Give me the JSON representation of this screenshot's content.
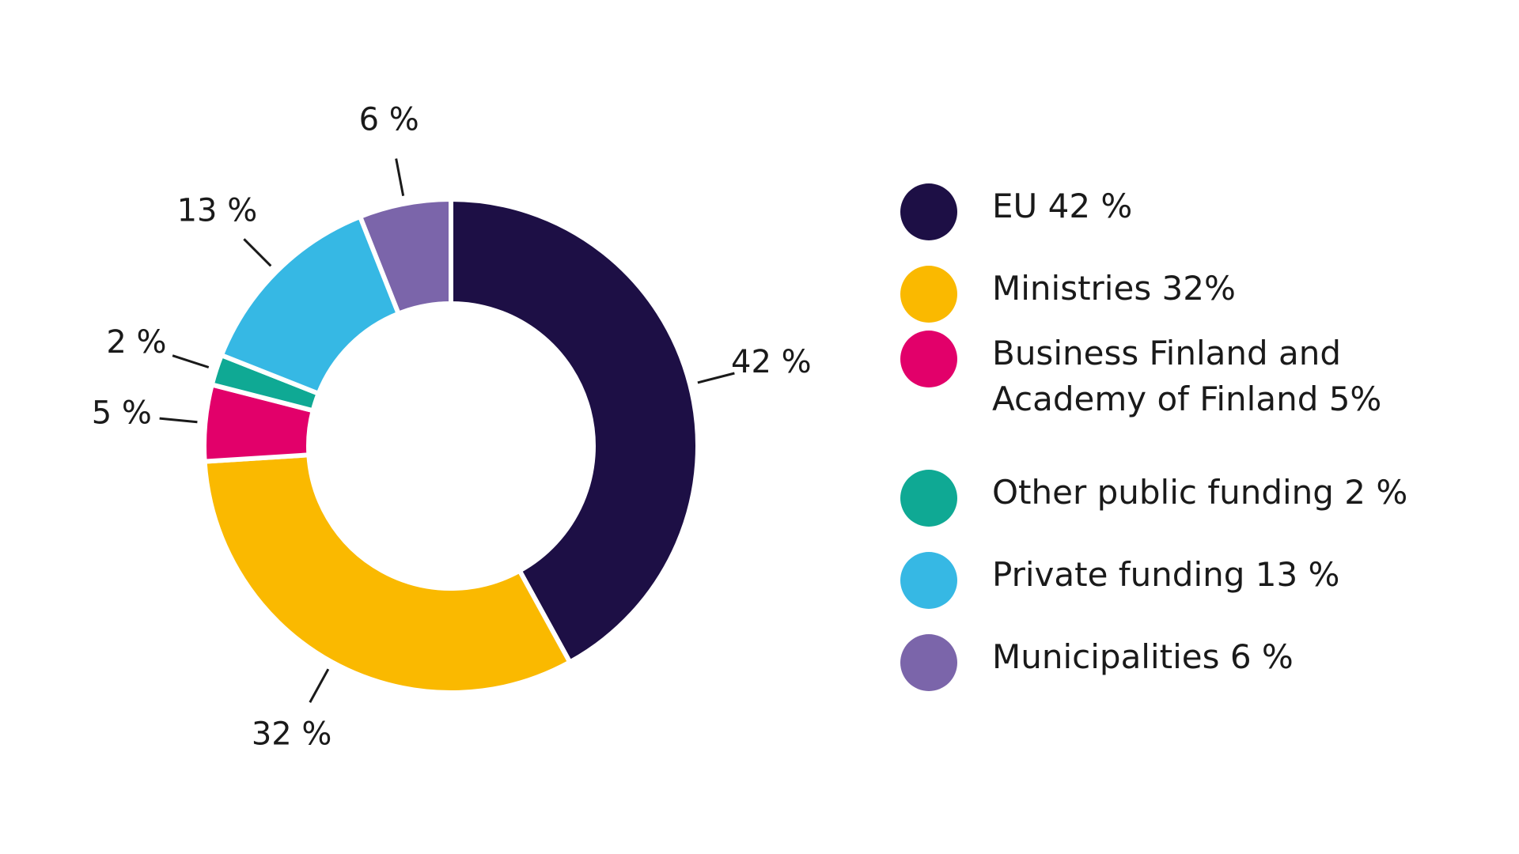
{
  "chart_data": {
    "type": "pie",
    "variant": "donut",
    "title": "",
    "categories": [
      "EU",
      "Ministries",
      "Business Finland and Academy of Finland",
      "Other public funding",
      "Private funding",
      "Municipalities"
    ],
    "values": [
      42,
      32,
      5,
      2,
      13,
      6
    ],
    "unit": "%",
    "data_labels": [
      "42 %",
      "32 %",
      "5 %",
      "2 %",
      "13 %",
      "6 %"
    ],
    "colors": [
      "#1d0f45",
      "#fab900",
      "#e2006a",
      "#0fa994",
      "#36b8e4",
      "#7b65aa"
    ],
    "legend_placement": "right",
    "legend": [
      {
        "label": "EU 42 %",
        "color": "#1d0f45"
      },
      {
        "label": "Ministries 32%",
        "color": "#fab900"
      },
      {
        "label": "Business Finland and\nAcademy of Finland 5%",
        "color": "#e2006a"
      },
      {
        "label": "Other public funding 2 %",
        "color": "#0fa994"
      },
      {
        "label": "Private funding 13 %",
        "color": "#36b8e4"
      },
      {
        "label": "Municipalities 6 %",
        "color": "#7b65aa"
      }
    ]
  }
}
